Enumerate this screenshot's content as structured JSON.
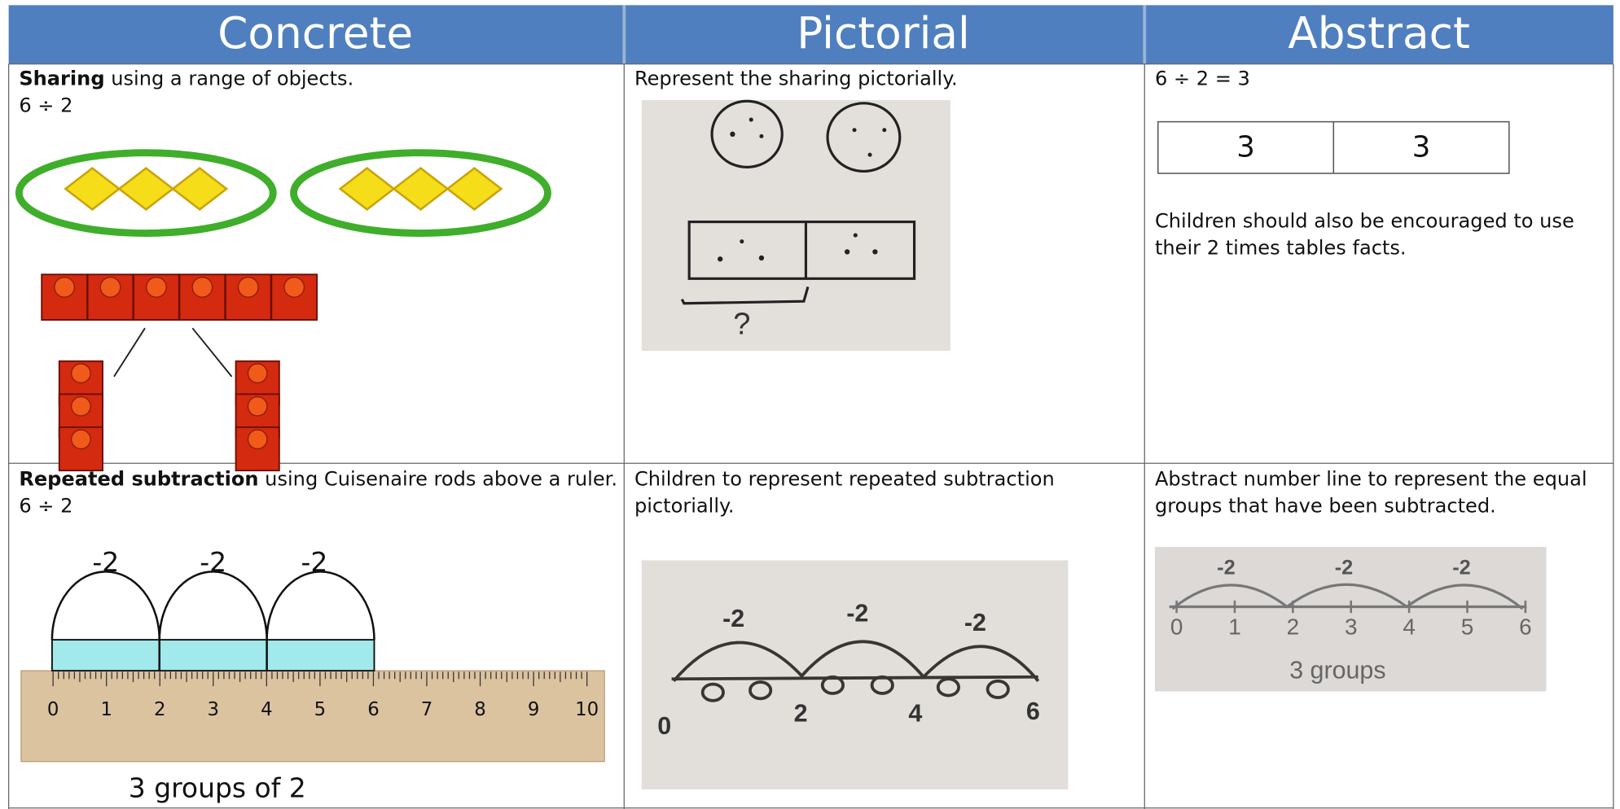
{
  "table": {
    "headers": [
      "Concrete",
      "Pictorial",
      "Abstract"
    ],
    "rows": [
      [
        {
          "bold": "Sharing",
          "text": " using a range of objects.",
          "expression": "6 ÷ 2"
        },
        {
          "lines": [
            "Represent the sharing pictorially."
          ],
          "image_text": [
            "?"
          ]
        },
        {
          "expression": "6 ÷ 2 = 3",
          "bar_model": [
            "3",
            "3"
          ],
          "lines": [
            "Children should also be encouraged to use",
            "their 2 times tables facts."
          ]
        }
      ],
      [
        {
          "bold": "Repeated subtraction",
          "text": " using Cuisenaire rods above a ruler.",
          "expression": "6 ÷ 2",
          "jump_labels": [
            "-2",
            "-2",
            "-2"
          ],
          "ruler_labels": [
            "0",
            "1",
            "2",
            "3",
            "4",
            "5",
            "6",
            "7",
            "8",
            "9",
            "10"
          ],
          "caption": "3 groups of 2"
        },
        {
          "lines": [
            "Children to represent repeated subtraction",
            "pictorially."
          ],
          "jump_labels": [
            "-2",
            "-2",
            "-2"
          ],
          "number_labels": [
            "0",
            "2",
            "4",
            "6"
          ]
        },
        {
          "lines": [
            "Abstract number line to represent the equal",
            "groups that have been subtracted."
          ],
          "jump_labels": [
            "-2",
            "-2",
            "-2"
          ],
          "number_labels": [
            "0",
            "1",
            "2",
            "3",
            "4",
            "5",
            "6"
          ],
          "caption": "3 groups"
        }
      ]
    ]
  }
}
